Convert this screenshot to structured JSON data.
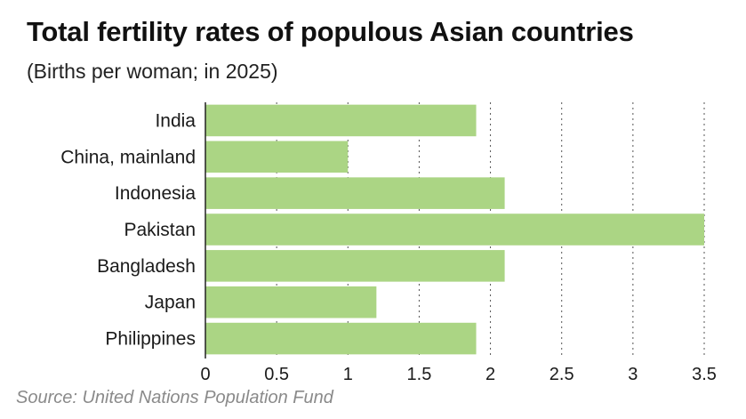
{
  "chart_data": {
    "type": "bar",
    "orientation": "horizontal",
    "title": "Total fertility rates of populous Asian countries",
    "subtitle": "(Births per woman; in 2025)",
    "categories": [
      "India",
      "China, mainland",
      "Indonesia",
      "Pakistan",
      "Bangladesh",
      "Japan",
      "Philippines"
    ],
    "values": [
      1.9,
      1.0,
      2.1,
      3.5,
      2.1,
      1.2,
      1.9
    ],
    "xlim": [
      0,
      3.5
    ],
    "xticks": [
      "0",
      "0.5",
      "1",
      "1.5",
      "2",
      "2.5",
      "3",
      "3.5"
    ],
    "xlabel": "",
    "ylabel": "",
    "grid": true,
    "bar_color": "#abd584",
    "source": "Source: United Nations Population Fund"
  }
}
